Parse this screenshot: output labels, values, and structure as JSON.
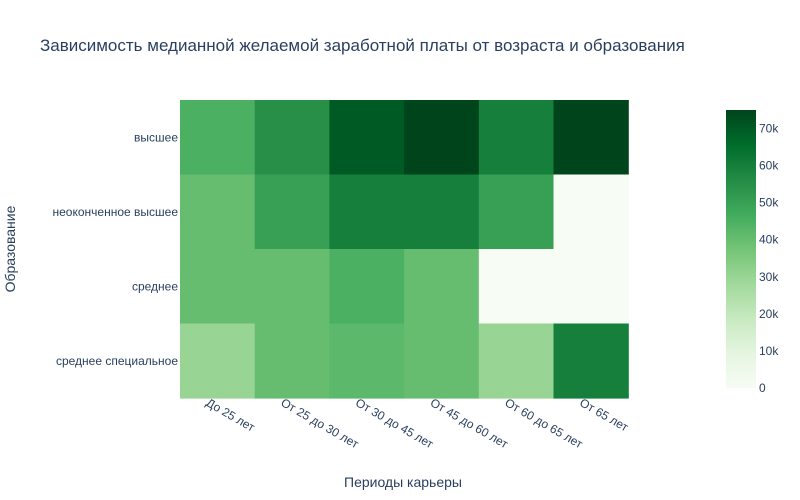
{
  "chart_data": {
    "type": "heatmap",
    "title": "Зависимость медианной желаемой заработной платы от возраста и образования",
    "xlabel": "Периоды карьеры",
    "ylabel": "Образование",
    "x_categories": [
      "До 25 лет",
      "От 25 до 30 лет",
      "От 30 до 45 лет",
      "От 45 до 60 лет",
      "От 60 до 65 лет",
      "От 65 лет"
    ],
    "y_categories": [
      "высшее",
      "неоконченное высшее",
      "среднее",
      "среднее специальное"
    ],
    "values": [
      [
        45000,
        55000,
        70000,
        75000,
        60000,
        75000
      ],
      [
        40000,
        50000,
        60000,
        60000,
        50000,
        0
      ],
      [
        40000,
        40000,
        45000,
        40000,
        0,
        0
      ],
      [
        30000,
        40000,
        42000,
        40000,
        30000,
        60000
      ]
    ],
    "colorscale": "Greens",
    "colorbar": {
      "range": [
        0,
        75000
      ],
      "ticks": [
        0,
        10000,
        20000,
        30000,
        40000,
        50000,
        60000,
        70000
      ],
      "tick_labels": [
        "0",
        "10k",
        "20k",
        "30k",
        "40k",
        "50k",
        "60k",
        "70k"
      ]
    }
  }
}
